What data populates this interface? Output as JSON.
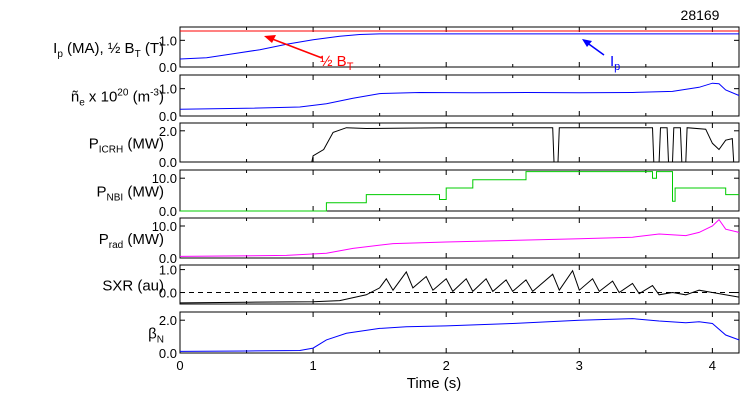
{
  "shot_number": "28169",
  "x_axis": {
    "label": "Time (s)",
    "ticks": [
      "0",
      "1",
      "2",
      "3",
      "4"
    ],
    "range": [
      0,
      4.2
    ]
  },
  "chart_data": {
    "type": "line",
    "title": "",
    "xlabel": "Time (s)",
    "panels": [
      {
        "id": "ip-bt",
        "ylabel_html": [
          "I",
          "p",
          " (MA), ½ B",
          "T",
          " (T)"
        ],
        "ylabel": "Ip (MA), ½ BT (T)",
        "ylim": [
          0,
          1.5
        ],
        "yticks": [
          {
            "v": 0.0,
            "t": "0.0"
          },
          {
            "v": 1.0,
            "t": "1.0"
          }
        ],
        "series": [
          {
            "color": "#ff0000",
            "points": [
              [
                0,
                1.35
              ],
              [
                4.2,
                1.35
              ]
            ]
          },
          {
            "color": "#0000ff",
            "points": [
              [
                0,
                0.3
              ],
              [
                0.2,
                0.35
              ],
              [
                0.4,
                0.5
              ],
              [
                0.6,
                0.65
              ],
              [
                0.8,
                0.85
              ],
              [
                1.0,
                1.02
              ],
              [
                1.2,
                1.15
              ],
              [
                1.35,
                1.22
              ],
              [
                1.5,
                1.24
              ],
              [
                2.0,
                1.24
              ],
              [
                3.0,
                1.24
              ],
              [
                4.0,
                1.24
              ],
              [
                4.2,
                1.24
              ]
            ]
          }
        ],
        "annotations": [
          {
            "text": "½ B",
            "sub": "T",
            "color": "#ff0000"
          },
          {
            "text": "I",
            "sub": "p",
            "color": "#0000ff"
          }
        ]
      },
      {
        "id": "ne",
        "ylabel_html": [
          "ñ",
          "e",
          " x 10",
          "20",
          " (m",
          "-3",
          ")"
        ],
        "ylabel": "ñe x 10^20 (m^-3)",
        "ylim": [
          0,
          1.5
        ],
        "yticks": [
          {
            "v": 0.0,
            "t": "0.0"
          },
          {
            "v": 1.0,
            "t": "1.0"
          }
        ],
        "series": [
          {
            "color": "#0000ff",
            "points": [
              [
                0,
                0.25
              ],
              [
                0.5,
                0.28
              ],
              [
                0.9,
                0.33
              ],
              [
                1.1,
                0.45
              ],
              [
                1.3,
                0.65
              ],
              [
                1.5,
                0.82
              ],
              [
                1.8,
                0.86
              ],
              [
                2.2,
                0.85
              ],
              [
                2.6,
                0.86
              ],
              [
                3.0,
                0.85
              ],
              [
                3.4,
                0.86
              ],
              [
                3.7,
                0.9
              ],
              [
                3.9,
                1.05
              ],
              [
                4.0,
                1.2
              ],
              [
                4.05,
                1.18
              ],
              [
                4.1,
                0.95
              ],
              [
                4.2,
                0.75
              ]
            ]
          }
        ]
      },
      {
        "id": "picrh",
        "ylabel_html": [
          "P",
          "ICRH",
          " (MW)"
        ],
        "ylabel": "PICRH (MW)",
        "ylim": [
          0,
          2.5
        ],
        "yticks": [
          {
            "v": 0.0,
            "t": "0.0"
          },
          {
            "v": 2.0,
            "t": "2.0"
          }
        ],
        "series": [
          {
            "color": "#000000",
            "points": [
              [
                0,
                0
              ],
              [
                0.99,
                0
              ],
              [
                1.0,
                0.4
              ],
              [
                1.08,
                0.8
              ],
              [
                1.15,
                1.9
              ],
              [
                1.25,
                2.2
              ],
              [
                1.4,
                2.15
              ],
              [
                2.0,
                2.2
              ],
              [
                2.8,
                2.2
              ],
              [
                2.81,
                0
              ],
              [
                2.84,
                0
              ],
              [
                2.85,
                2.2
              ],
              [
                3.55,
                2.2
              ],
              [
                3.56,
                0
              ],
              [
                3.6,
                0
              ],
              [
                3.61,
                2.2
              ],
              [
                3.66,
                2.2
              ],
              [
                3.67,
                0
              ],
              [
                3.7,
                0
              ],
              [
                3.71,
                2.2
              ],
              [
                3.76,
                2.2
              ],
              [
                3.77,
                0
              ],
              [
                3.8,
                0
              ],
              [
                3.81,
                2.2
              ],
              [
                3.95,
                2.1
              ],
              [
                4.0,
                1.2
              ],
              [
                4.05,
                0.8
              ],
              [
                4.1,
                1.4
              ],
              [
                4.15,
                1.5
              ],
              [
                4.16,
                0
              ],
              [
                4.2,
                0
              ]
            ]
          }
        ]
      },
      {
        "id": "pnbi",
        "ylabel_html": [
          "P",
          "NBI",
          " (MW)"
        ],
        "ylabel": "PNBI (MW)",
        "ylim": [
          0,
          12.5
        ],
        "yticks": [
          {
            "v": 0.0,
            "t": "0.0"
          },
          {
            "v": 10.0,
            "t": "10.0"
          }
        ],
        "series": [
          {
            "color": "#00cc00",
            "points": [
              [
                0,
                0
              ],
              [
                1.1,
                0
              ],
              [
                1.1,
                2.5
              ],
              [
                1.4,
                2.5
              ],
              [
                1.4,
                5
              ],
              [
                1.95,
                5
              ],
              [
                1.95,
                3.5
              ],
              [
                2.0,
                3.5
              ],
              [
                2.0,
                7
              ],
              [
                2.2,
                7
              ],
              [
                2.2,
                9.5
              ],
              [
                2.6,
                9.5
              ],
              [
                2.6,
                12
              ],
              [
                3.55,
                12
              ],
              [
                3.55,
                10
              ],
              [
                3.58,
                10
              ],
              [
                3.58,
                12
              ],
              [
                3.7,
                12
              ],
              [
                3.7,
                3
              ],
              [
                3.72,
                3
              ],
              [
                3.72,
                7
              ],
              [
                4.1,
                7
              ],
              [
                4.1,
                5
              ],
              [
                4.2,
                5
              ]
            ]
          }
        ]
      },
      {
        "id": "prad",
        "ylabel_html": [
          "P",
          "rad",
          " (MW)"
        ],
        "ylabel": "Prad (MW)",
        "ylim": [
          0,
          12.5
        ],
        "yticks": [
          {
            "v": 0.0,
            "t": "0.0"
          },
          {
            "v": 10.0,
            "t": "10.0"
          }
        ],
        "series": [
          {
            "color": "#ff00ff",
            "points": [
              [
                0,
                0.5
              ],
              [
                0.8,
                0.8
              ],
              [
                1.1,
                1.5
              ],
              [
                1.3,
                3
              ],
              [
                1.6,
                4.5
              ],
              [
                2.0,
                5
              ],
              [
                2.5,
                5.5
              ],
              [
                3.0,
                6
              ],
              [
                3.4,
                6.5
              ],
              [
                3.6,
                7.5
              ],
              [
                3.8,
                7
              ],
              [
                3.9,
                8
              ],
              [
                4.0,
                10
              ],
              [
                4.05,
                12
              ],
              [
                4.1,
                9
              ],
              [
                4.2,
                8
              ]
            ]
          }
        ]
      },
      {
        "id": "sxr",
        "ylabel_html": [
          "SXR (au)"
        ],
        "ylabel": "SXR (au)",
        "ylim": [
          -0.5,
          1.2
        ],
        "yticks": [
          {
            "v": 0.0,
            "t": "0.0"
          },
          {
            "v": 1.0,
            "t": "1.0"
          }
        ],
        "dashed_zero": true,
        "series": [
          {
            "color": "#000000",
            "points": [
              [
                0,
                -0.45
              ],
              [
                0.5,
                -0.42
              ],
              [
                1.0,
                -0.4
              ],
              [
                1.2,
                -0.35
              ],
              [
                1.4,
                -0.1
              ],
              [
                1.5,
                0.2
              ],
              [
                1.55,
                0.6
              ],
              [
                1.6,
                0.1
              ],
              [
                1.7,
                0.9
              ],
              [
                1.75,
                0.2
              ],
              [
                1.85,
                0.7
              ],
              [
                1.9,
                0.1
              ],
              [
                2.0,
                0.6
              ],
              [
                2.05,
                0.05
              ],
              [
                2.15,
                0.6
              ],
              [
                2.2,
                0.05
              ],
              [
                2.3,
                0.6
              ],
              [
                2.35,
                0.05
              ],
              [
                2.45,
                0.55
              ],
              [
                2.5,
                0.05
              ],
              [
                2.6,
                0.55
              ],
              [
                2.65,
                0.05
              ],
              [
                2.8,
                0.8
              ],
              [
                2.85,
                0.1
              ],
              [
                2.95,
                0.95
              ],
              [
                3.0,
                0.1
              ],
              [
                3.1,
                0.6
              ],
              [
                3.15,
                0.05
              ],
              [
                3.25,
                0.5
              ],
              [
                3.3,
                0.0
              ],
              [
                3.4,
                0.4
              ],
              [
                3.45,
                -0.05
              ],
              [
                3.55,
                0.3
              ],
              [
                3.6,
                -0.1
              ],
              [
                3.7,
                0.0
              ],
              [
                3.8,
                -0.1
              ],
              [
                3.9,
                0.1
              ],
              [
                4.0,
                0.0
              ],
              [
                4.2,
                -0.2
              ]
            ]
          }
        ]
      },
      {
        "id": "betan",
        "ylabel_html": [
          "β",
          "N"
        ],
        "ylabel": "βN",
        "ylim": [
          0,
          2.5
        ],
        "yticks": [
          {
            "v": 0.0,
            "t": "0.0"
          },
          {
            "v": 2.0,
            "t": "2.0"
          }
        ],
        "series": [
          {
            "color": "#0000ff",
            "points": [
              [
                0,
                0.1
              ],
              [
                0.5,
                0.12
              ],
              [
                0.9,
                0.15
              ],
              [
                1.0,
                0.3
              ],
              [
                1.1,
                0.8
              ],
              [
                1.25,
                1.2
              ],
              [
                1.5,
                1.5
              ],
              [
                1.7,
                1.6
              ],
              [
                2.0,
                1.65
              ],
              [
                2.5,
                1.8
              ],
              [
                3.0,
                2.0
              ],
              [
                3.4,
                2.1
              ],
              [
                3.6,
                1.95
              ],
              [
                3.8,
                1.85
              ],
              [
                3.9,
                1.9
              ],
              [
                4.0,
                1.8
              ],
              [
                4.1,
                1.1
              ],
              [
                4.2,
                0.8
              ]
            ]
          }
        ]
      }
    ]
  }
}
